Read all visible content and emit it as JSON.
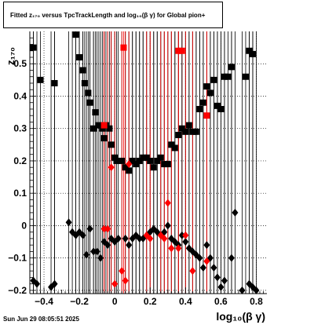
{
  "title": "Fitted  z₁₇₀  versus TpcTrackLength and log₁₀(β γ) for Global pion+",
  "timestamp": "Sun Jun 29 08:05:51 2025",
  "chart_data": {
    "type": "scatter",
    "xlabel": "log₁₀(β γ)",
    "ylabel": "z₁₇₀",
    "xlim": [
      -0.48,
      0.86
    ],
    "ylim": [
      -0.21,
      0.6
    ],
    "x_ticks": [
      -0.4,
      -0.2,
      0,
      0.2,
      0.4,
      0.6,
      0.8
    ],
    "x_tick_labels": [
      "−0.4",
      "−0.2",
      "0",
      "0.2",
      "0.4",
      "0.6",
      "0.8"
    ],
    "y_ticks": [
      -0.2,
      -0.1,
      0,
      0.1,
      0.2,
      0.3,
      0.4,
      0.5
    ],
    "y_tick_labels": [
      "−0.2",
      "−0.1",
      "0",
      "0.1",
      "0.2",
      "0.3",
      "0.4",
      "0.5"
    ],
    "grid": true,
    "colors": {
      "series_black": "#000000",
      "series_red": "#ff0000",
      "axis": "#000000",
      "grid": "#000000"
    },
    "series": [
      {
        "marker": "square",
        "color": "#000000",
        "points": [
          {
            "x": -0.46,
            "y": 0.55
          },
          {
            "x": -0.42,
            "y": 0.45
          },
          {
            "x": -0.34,
            "y": 0.44
          },
          {
            "x": -0.22,
            "y": 0.59
          },
          {
            "x": -0.2,
            "y": 0.52
          },
          {
            "x": -0.18,
            "y": 0.48
          },
          {
            "x": -0.17,
            "y": 0.44
          },
          {
            "x": -0.15,
            "y": 0.41
          },
          {
            "x": -0.14,
            "y": 0.38
          },
          {
            "x": -0.12,
            "y": 0.3
          },
          {
            "x": -0.11,
            "y": 0.35
          },
          {
            "x": -0.09,
            "y": 0.31
          },
          {
            "x": -0.07,
            "y": 0.3
          },
          {
            "x": -0.06,
            "y": 0.27
          },
          {
            "x": -0.05,
            "y": 0.31
          },
          {
            "x": -0.03,
            "y": 0.3
          },
          {
            "x": -0.02,
            "y": 0.25
          },
          {
            "x": 0,
            "y": 0.21
          },
          {
            "x": 0.01,
            "y": 0.2
          },
          {
            "x": 0.04,
            "y": 0.2
          },
          {
            "x": 0.06,
            "y": 0.18
          },
          {
            "x": 0.08,
            "y": 0.17
          },
          {
            "x": 0.1,
            "y": 0.2
          },
          {
            "x": 0.12,
            "y": 0.19
          },
          {
            "x": 0.14,
            "y": 0.2
          },
          {
            "x": 0.16,
            "y": 0.21
          },
          {
            "x": 0.18,
            "y": 0.21
          },
          {
            "x": 0.2,
            "y": 0.2
          },
          {
            "x": 0.22,
            "y": 0.18
          },
          {
            "x": 0.24,
            "y": 0.2
          },
          {
            "x": 0.26,
            "y": 0.21
          },
          {
            "x": 0.28,
            "y": 0.19
          },
          {
            "x": 0.3,
            "y": 0.19
          },
          {
            "x": 0.32,
            "y": 0.25
          },
          {
            "x": 0.34,
            "y": 0.24
          },
          {
            "x": 0.36,
            "y": 0.28
          },
          {
            "x": 0.38,
            "y": 0.3
          },
          {
            "x": 0.4,
            "y": 0.29
          },
          {
            "x": 0.42,
            "y": 0.31
          },
          {
            "x": 0.44,
            "y": 0.29
          },
          {
            "x": 0.46,
            "y": 0.29
          },
          {
            "x": 0.48,
            "y": 0.36
          },
          {
            "x": 0.5,
            "y": 0.38
          },
          {
            "x": 0.52,
            "y": 0.43
          },
          {
            "x": 0.54,
            "y": 0.41
          },
          {
            "x": 0.56,
            "y": 0.45
          },
          {
            "x": 0.58,
            "y": 0.37
          },
          {
            "x": 0.6,
            "y": 0.36
          },
          {
            "x": 0.62,
            "y": 0.46
          },
          {
            "x": 0.64,
            "y": 0.46
          },
          {
            "x": 0.66,
            "y": 0.49
          },
          {
            "x": 0.74,
            "y": 0.46
          },
          {
            "x": 0.76,
            "y": 0.54
          },
          {
            "x": 0.78,
            "y": 0.53
          }
        ]
      },
      {
        "marker": "square",
        "color": "#ff0000",
        "points": [
          {
            "x": -0.06,
            "y": 0.31
          },
          {
            "x": 0.05,
            "y": 0.55
          },
          {
            "x": 0.36,
            "y": 0.54
          },
          {
            "x": 0.38,
            "y": 0.54
          },
          {
            "x": 0.52,
            "y": 0.34
          }
        ]
      },
      {
        "marker": "diamond",
        "color": "#000000",
        "points": [
          {
            "x": -0.46,
            "y": -0.17
          },
          {
            "x": -0.44,
            "y": -0.18
          },
          {
            "x": -0.36,
            "y": -0.19
          },
          {
            "x": -0.34,
            "y": -0.18
          },
          {
            "x": -0.26,
            "y": 0.01
          },
          {
            "x": -0.24,
            "y": -0.02
          },
          {
            "x": -0.22,
            "y": -0.03
          },
          {
            "x": -0.2,
            "y": -0.02
          },
          {
            "x": -0.18,
            "y": -0.03
          },
          {
            "x": -0.16,
            "y": -0.09
          },
          {
            "x": -0.14,
            "y": -0.01
          },
          {
            "x": -0.12,
            "y": -0.08
          },
          {
            "x": -0.1,
            "y": -0.08
          },
          {
            "x": -0.08,
            "y": -0.1
          },
          {
            "x": -0.06,
            "y": -0.05
          },
          {
            "x": -0.04,
            "y": -0.06
          },
          {
            "x": -0.02,
            "y": -0.04
          },
          {
            "x": 0,
            "y": -0.05
          },
          {
            "x": 0.02,
            "y": -0.04
          },
          {
            "x": 0.06,
            "y": -0.04
          },
          {
            "x": 0.08,
            "y": -0.06
          },
          {
            "x": 0.1,
            "y": -0.04
          },
          {
            "x": 0.12,
            "y": -0.03
          },
          {
            "x": 0.14,
            "y": -0.04
          },
          {
            "x": 0.16,
            "y": -0.04
          },
          {
            "x": 0.18,
            "y": -0.03
          },
          {
            "x": 0.2,
            "y": -0.02
          },
          {
            "x": 0.22,
            "y": -0.01
          },
          {
            "x": 0.24,
            "y": -0.02
          },
          {
            "x": 0.26,
            "y": -0.03
          },
          {
            "x": 0.28,
            "y": -0.02
          },
          {
            "x": 0.3,
            "y": 0.0
          },
          {
            "x": 0.32,
            "y": -0.04
          },
          {
            "x": 0.34,
            "y": -0.05
          },
          {
            "x": 0.36,
            "y": -0.06
          },
          {
            "x": 0.38,
            "y": -0.03
          },
          {
            "x": 0.4,
            "y": -0.05
          },
          {
            "x": 0.42,
            "y": -0.07
          },
          {
            "x": 0.44,
            "y": -0.08
          },
          {
            "x": 0.46,
            "y": -0.09
          },
          {
            "x": 0.48,
            "y": -0.1
          },
          {
            "x": 0.5,
            "y": -0.13
          },
          {
            "x": 0.52,
            "y": -0.06
          },
          {
            "x": 0.54,
            "y": -0.1
          },
          {
            "x": 0.56,
            "y": -0.13
          },
          {
            "x": 0.58,
            "y": -0.16
          },
          {
            "x": 0.6,
            "y": -0.19
          },
          {
            "x": 0.62,
            "y": -0.17
          },
          {
            "x": 0.66,
            "y": -0.1
          },
          {
            "x": 0.68,
            "y": 0.04
          },
          {
            "x": 0.72,
            "y": -0.2
          },
          {
            "x": 0.76,
            "y": -0.18
          },
          {
            "x": 0.78,
            "y": -0.19
          },
          {
            "x": 0.8,
            "y": -0.2
          }
        ]
      },
      {
        "marker": "diamond",
        "color": "#ff0000",
        "points": [
          {
            "x": -0.06,
            "y": -0.01
          },
          {
            "x": -0.04,
            "y": -0.01
          },
          {
            "x": -0.02,
            "y": 0.18
          },
          {
            "x": 0,
            "y": -0.18
          },
          {
            "x": 0.04,
            "y": -0.14
          },
          {
            "x": 0.06,
            "y": -0.17
          },
          {
            "x": 0.08,
            "y": 0.19
          },
          {
            "x": 0.18,
            "y": -0.03
          },
          {
            "x": 0.2,
            "y": -0.04
          },
          {
            "x": 0.26,
            "y": -0.03
          },
          {
            "x": 0.28,
            "y": -0.04
          },
          {
            "x": 0.3,
            "y": 0.07
          },
          {
            "x": 0.32,
            "y": -0.07
          },
          {
            "x": 0.36,
            "y": -0.07
          },
          {
            "x": 0.4,
            "y": -0.03
          },
          {
            "x": 0.44,
            "y": -0.14
          },
          {
            "x": 0.52,
            "y": -0.11
          }
        ]
      }
    ]
  }
}
